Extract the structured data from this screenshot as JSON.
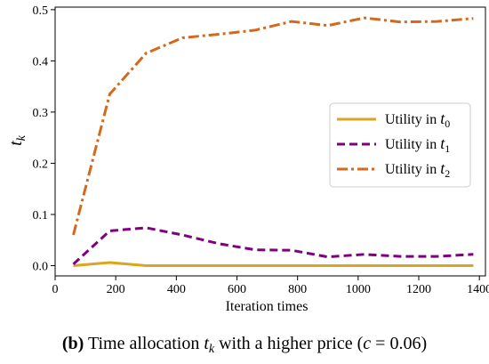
{
  "chart_data": {
    "type": "line",
    "xlabel": "Iteration times",
    "ylabel_base": "t",
    "ylabel_sub": "k",
    "xlim": [
      0,
      1420
    ],
    "ylim": [
      -0.02,
      0.505
    ],
    "xticks": [
      0,
      200,
      400,
      600,
      800,
      1000,
      1200,
      1400
    ],
    "yticks": [
      0.0,
      0.1,
      0.2,
      0.3,
      0.4,
      0.5
    ],
    "ytick_labels": [
      "0.0",
      "0.1",
      "0.2",
      "0.3",
      "0.4",
      "0.5"
    ],
    "grid": false,
    "legend_position": "center-right",
    "x": [
      60,
      180,
      300,
      420,
      540,
      660,
      780,
      900,
      1020,
      1140,
      1260,
      1380
    ],
    "series": [
      {
        "name": "Utility in t",
        "name_sub": "0",
        "color": "#DAA520",
        "dash": "solid",
        "values": [
          0.0,
          0.006,
          0.0,
          0.0,
          0.0,
          0.0,
          0.0,
          0.0,
          0.0,
          0.0,
          0.0,
          0.0
        ]
      },
      {
        "name": "Utility in t",
        "name_sub": "1",
        "color": "#800080",
        "dash": "dashed",
        "values": [
          0.003,
          0.068,
          0.074,
          0.06,
          0.043,
          0.031,
          0.03,
          0.017,
          0.022,
          0.018,
          0.018,
          0.022
        ]
      },
      {
        "name": "Utility in t",
        "name_sub": "2",
        "color": "#D2691E",
        "dash": "dashdot",
        "values": [
          0.06,
          0.335,
          0.415,
          0.445,
          0.452,
          0.46,
          0.477,
          0.469,
          0.484,
          0.476,
          0.477,
          0.483
        ]
      }
    ]
  },
  "caption": {
    "label": "(b)",
    "text_before": " Time allocation ",
    "var_base": "t",
    "var_sub": "k",
    "text_middle": " with a higher price (",
    "param": "c",
    "equals": " = 0.06)"
  }
}
